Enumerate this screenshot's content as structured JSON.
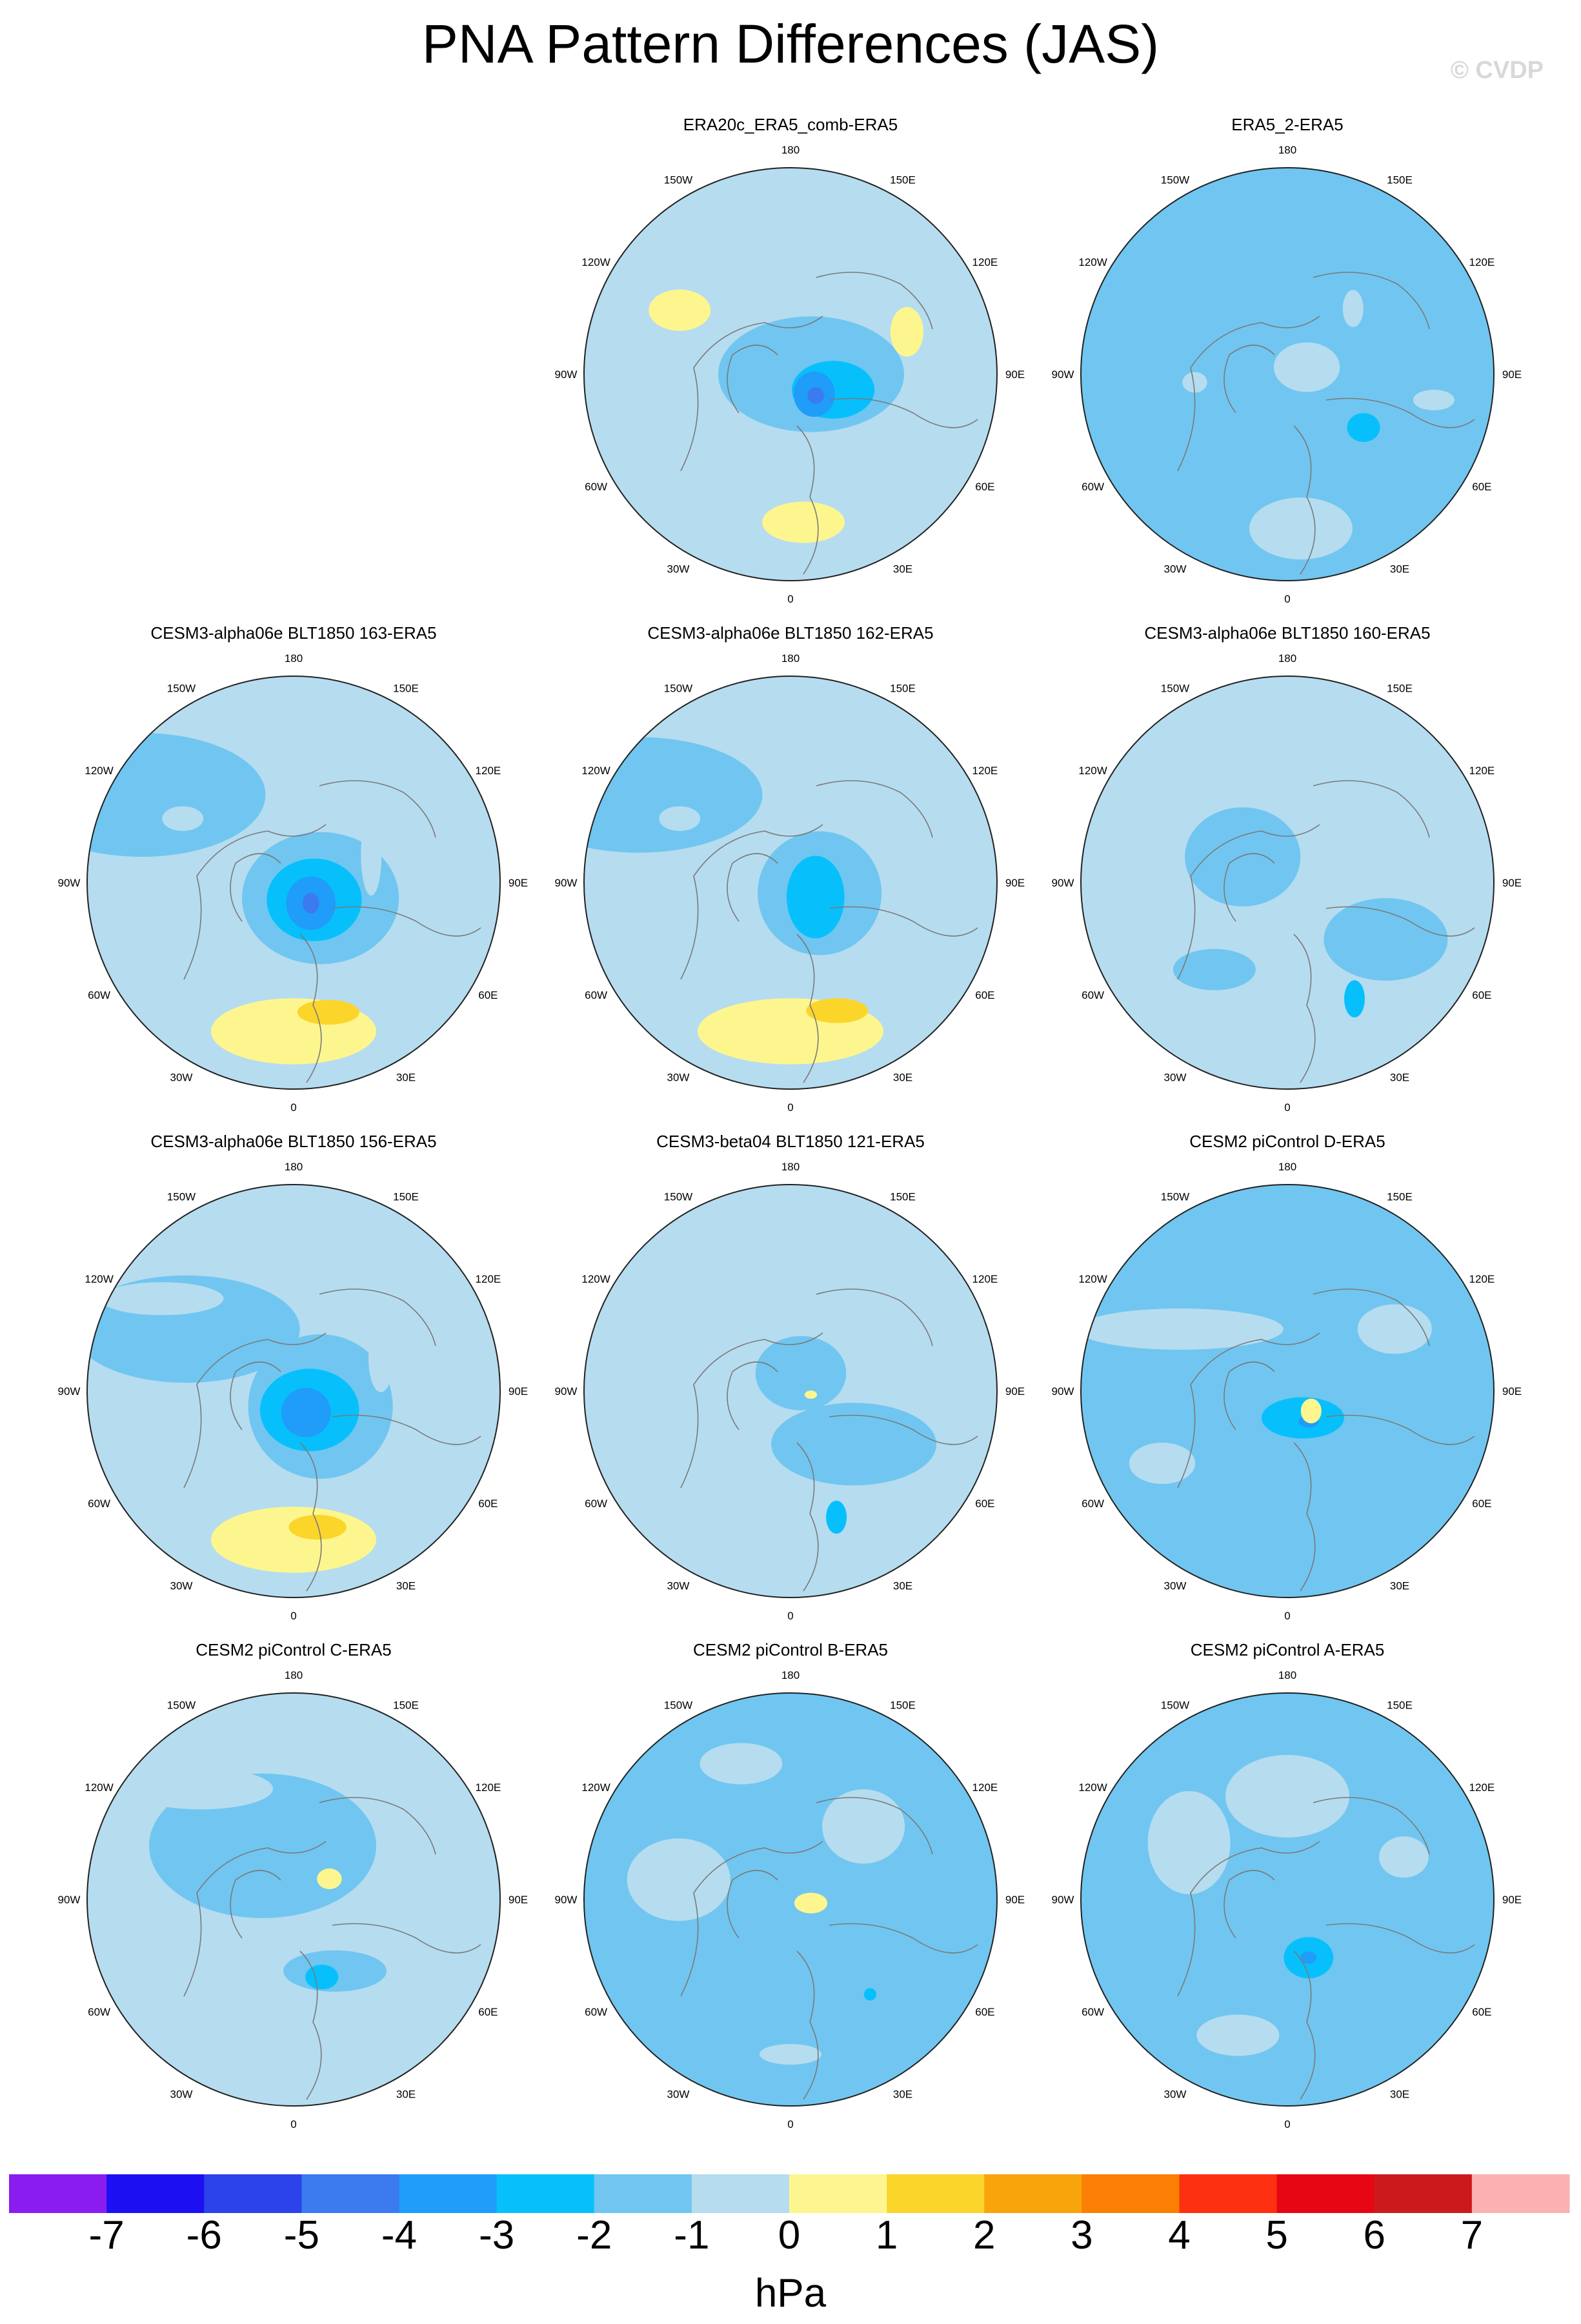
{
  "title": "PNA Pattern Differences (JAS)",
  "credit": "© CVDP",
  "units": "hPa",
  "colorbar": {
    "tick_labels": [
      "-7",
      "-6",
      "-5",
      "-4",
      "-3",
      "-2",
      "-1",
      "0",
      "1",
      "2",
      "3",
      "4",
      "5",
      "6",
      "7"
    ],
    "colors": [
      "#8a1cf0",
      "#1c10f2",
      "#2c42ea",
      "#3c7af0",
      "#1f9df8",
      "#07c0fb",
      "#70c6f0",
      "#b6dcef",
      "#fdf68f",
      "#fbd52a",
      "#faa40b",
      "#fa7f02",
      "#fd3012",
      "#e60614",
      "#cc1a1c",
      "#fbb1b0"
    ]
  },
  "map": {
    "land_color": "#e0e0e0",
    "longitude_labels": [
      "180",
      "150E",
      "120E",
      "90E",
      "60E",
      "30E",
      "0",
      "30W",
      "60W",
      "90W",
      "120W",
      "150W"
    ]
  },
  "panels": [
    {
      "title": "ERA20c_ERA5_comb-ERA5",
      "base_level": 0,
      "features": [
        {
          "lon": 175,
          "r": 0.72,
          "level": 1,
          "rx": 0.2,
          "ry": 0.1
        },
        {
          "lon": 90,
          "r": 0.1,
          "level": -1,
          "rx": 0.45,
          "ry": 0.28
        },
        {
          "lon": 110,
          "r": 0.22,
          "level": -2,
          "rx": 0.2,
          "ry": 0.14
        },
        {
          "lon": 130,
          "r": 0.15,
          "level": -3,
          "rx": 0.1,
          "ry": 0.11
        },
        {
          "lon": 130,
          "r": 0.16,
          "level": -4,
          "rx": 0.04,
          "ry": 0.04
        },
        {
          "lon": 300,
          "r": 0.75,
          "level": 0,
          "rx": 0.18,
          "ry": 0.08
        },
        {
          "lon": 300,
          "r": 0.62,
          "level": 1,
          "rx": 0.15,
          "ry": 0.1
        },
        {
          "lon": 70,
          "r": 0.6,
          "level": 1,
          "rx": 0.08,
          "ry": 0.12
        }
      ]
    },
    {
      "title": "ERA5_2-ERA5",
      "base_level": -1,
      "features": [
        {
          "lon": 175,
          "r": 0.75,
          "level": 0,
          "rx": 0.25,
          "ry": 0.15
        },
        {
          "lon": 125,
          "r": 0.45,
          "level": -2,
          "rx": 0.08,
          "ry": 0.07
        },
        {
          "lon": 70,
          "r": 0.1,
          "level": 0,
          "rx": 0.16,
          "ry": 0.12
        },
        {
          "lon": 45,
          "r": 0.45,
          "level": 0,
          "rx": 0.05,
          "ry": 0.09
        },
        {
          "lon": 100,
          "r": 0.72,
          "level": 0,
          "rx": 0.1,
          "ry": 0.05
        },
        {
          "lon": 265,
          "r": 0.45,
          "level": 0,
          "rx": 0.06,
          "ry": 0.05
        }
      ]
    },
    {
      "title": "CESM3-alpha06e BLT1850 163-ERA5",
      "base_level": 0,
      "features": [
        {
          "lon": 180,
          "r": 0.72,
          "level": 1,
          "rx": 0.4,
          "ry": 0.16
        },
        {
          "lon": 165,
          "r": 0.65,
          "level": 2,
          "rx": 0.15,
          "ry": 0.06
        },
        {
          "lon": 300,
          "r": 0.85,
          "level": -1,
          "rx": 0.6,
          "ry": 0.3
        },
        {
          "lon": 120,
          "r": 0.15,
          "level": -1,
          "rx": 0.38,
          "ry": 0.32
        },
        {
          "lon": 130,
          "r": 0.13,
          "level": -2,
          "rx": 0.23,
          "ry": 0.2
        },
        {
          "lon": 140,
          "r": 0.13,
          "level": -3,
          "rx": 0.12,
          "ry": 0.13
        },
        {
          "lon": 140,
          "r": 0.13,
          "level": -4,
          "rx": 0.04,
          "ry": 0.05
        },
        {
          "lon": 300,
          "r": 0.62,
          "level": 0,
          "rx": 0.1,
          "ry": 0.06
        },
        {
          "lon": 70,
          "r": 0.4,
          "level": 0,
          "rx": 0.05,
          "ry": 0.2
        }
      ]
    },
    {
      "title": "CESM3-alpha06e BLT1850 162-ERA5",
      "base_level": 0,
      "features": [
        {
          "lon": 180,
          "r": 0.72,
          "level": 1,
          "rx": 0.45,
          "ry": 0.16
        },
        {
          "lon": 160,
          "r": 0.66,
          "level": 2,
          "rx": 0.15,
          "ry": 0.06
        },
        {
          "lon": 300,
          "r": 0.85,
          "level": -1,
          "rx": 0.6,
          "ry": 0.28
        },
        {
          "lon": 110,
          "r": 0.15,
          "level": -1,
          "rx": 0.3,
          "ry": 0.3
        },
        {
          "lon": 120,
          "r": 0.14,
          "level": -2,
          "rx": 0.14,
          "ry": 0.2
        },
        {
          "lon": 300,
          "r": 0.62,
          "level": 0,
          "rx": 0.1,
          "ry": 0.06
        },
        {
          "lon": 80,
          "r": 0.55,
          "level": 0,
          "rx": 0.12,
          "ry": 0.1
        }
      ]
    },
    {
      "title": "CESM3-alpha06e BLT1850 160-ERA5",
      "base_level": 0,
      "features": [
        {
          "lon": 120,
          "r": 0.55,
          "level": -1,
          "rx": 0.3,
          "ry": 0.2
        },
        {
          "lon": 150,
          "r": 0.65,
          "level": -2,
          "rx": 0.05,
          "ry": 0.09
        },
        {
          "lon": 300,
          "r": 0.25,
          "level": -1,
          "rx": 0.28,
          "ry": 0.24
        },
        {
          "lon": 40,
          "r": 0.3,
          "level": 0,
          "rx": 0.08,
          "ry": 0.12
        },
        {
          "lon": 220,
          "r": 0.55,
          "level": -1,
          "rx": 0.2,
          "ry": 0.1
        }
      ]
    },
    {
      "title": "CESM3-alpha06e BLT1850 156-ERA5",
      "base_level": 0,
      "features": [
        {
          "lon": 180,
          "r": 0.72,
          "level": 1,
          "rx": 0.4,
          "ry": 0.16
        },
        {
          "lon": 170,
          "r": 0.67,
          "level": 2,
          "rx": 0.14,
          "ry": 0.06
        },
        {
          "lon": 300,
          "r": 0.6,
          "level": -1,
          "rx": 0.55,
          "ry": 0.26
        },
        {
          "lon": 120,
          "r": 0.15,
          "level": -1,
          "rx": 0.35,
          "ry": 0.35
        },
        {
          "lon": 140,
          "r": 0.12,
          "level": -2,
          "rx": 0.24,
          "ry": 0.2
        },
        {
          "lon": 150,
          "r": 0.12,
          "level": -3,
          "rx": 0.12,
          "ry": 0.12
        },
        {
          "lon": 305,
          "r": 0.78,
          "level": 0,
          "rx": 0.3,
          "ry": 0.08
        },
        {
          "lon": 70,
          "r": 0.45,
          "level": 0,
          "rx": 0.06,
          "ry": 0.16
        }
      ]
    },
    {
      "title": "CESM3-beta04 BLT1850 121-ERA5",
      "base_level": 0,
      "features": [
        {
          "lon": 130,
          "r": 0.4,
          "level": -1,
          "rx": 0.4,
          "ry": 0.2
        },
        {
          "lon": 160,
          "r": 0.65,
          "level": -2,
          "rx": 0.05,
          "ry": 0.08
        },
        {
          "lon": 30,
          "r": 0.1,
          "level": -1,
          "rx": 0.22,
          "ry": 0.18
        },
        {
          "lon": 280,
          "r": 0.3,
          "level": 0,
          "rx": 0.08,
          "ry": 0.05
        },
        {
          "lon": 100,
          "r": 0.1,
          "level": 1,
          "rx": 0.03,
          "ry": 0.02
        }
      ]
    },
    {
      "title": "CESM2 piControl D-ERA5",
      "base_level": -1,
      "features": [
        {
          "lon": 150,
          "r": 0.15,
          "level": -2,
          "rx": 0.2,
          "ry": 0.1
        },
        {
          "lon": 145,
          "r": 0.18,
          "level": -3,
          "rx": 0.05,
          "ry": 0.03
        },
        {
          "lon": 130,
          "r": 0.15,
          "level": 1,
          "rx": 0.05,
          "ry": 0.06
        },
        {
          "lon": 300,
          "r": 0.6,
          "level": 0,
          "rx": 0.5,
          "ry": 0.1
        },
        {
          "lon": 60,
          "r": 0.6,
          "level": 0,
          "rx": 0.18,
          "ry": 0.12
        },
        {
          "lon": 240,
          "r": 0.7,
          "level": 0,
          "rx": 0.16,
          "ry": 0.1
        }
      ]
    },
    {
      "title": "CESM2 piControl C-ERA5",
      "base_level": 0,
      "features": [
        {
          "lon": 330,
          "r": 0.3,
          "level": -1,
          "rx": 0.55,
          "ry": 0.35
        },
        {
          "lon": 150,
          "r": 0.4,
          "level": -1,
          "rx": 0.25,
          "ry": 0.1
        },
        {
          "lon": 160,
          "r": 0.4,
          "level": -2,
          "rx": 0.08,
          "ry": 0.06
        },
        {
          "lon": 60,
          "r": 0.2,
          "level": 1,
          "rx": 0.06,
          "ry": 0.05
        },
        {
          "lon": 320,
          "r": 0.7,
          "level": 0,
          "rx": 0.35,
          "ry": 0.1
        }
      ]
    },
    {
      "title": "CESM2 piControl B-ERA5",
      "base_level": -1,
      "features": [
        {
          "lon": 180,
          "r": 0.75,
          "level": 0,
          "rx": 0.15,
          "ry": 0.05
        },
        {
          "lon": 100,
          "r": 0.1,
          "level": 1,
          "rx": 0.08,
          "ry": 0.05
        },
        {
          "lon": 280,
          "r": 0.55,
          "level": 0,
          "rx": 0.25,
          "ry": 0.2
        },
        {
          "lon": 340,
          "r": 0.7,
          "level": 0,
          "rx": 0.2,
          "ry": 0.1
        },
        {
          "lon": 140,
          "r": 0.6,
          "level": -2,
          "rx": 0.03,
          "ry": 0.03
        },
        {
          "lon": 45,
          "r": 0.5,
          "level": 0,
          "rx": 0.2,
          "ry": 0.18
        }
      ]
    },
    {
      "title": "CESM2 piControl A-ERA5",
      "base_level": -1,
      "features": [
        {
          "lon": 160,
          "r": 0.3,
          "level": -2,
          "rx": 0.12,
          "ry": 0.1
        },
        {
          "lon": 160,
          "r": 0.3,
          "level": -3,
          "rx": 0.04,
          "ry": 0.03
        },
        {
          "lon": 0,
          "r": 0.5,
          "level": 0,
          "rx": 0.3,
          "ry": 0.2
        },
        {
          "lon": 300,
          "r": 0.55,
          "level": 0,
          "rx": 0.2,
          "ry": 0.25
        },
        {
          "lon": 70,
          "r": 0.6,
          "level": 0,
          "rx": 0.12,
          "ry": 0.1
        },
        {
          "lon": 200,
          "r": 0.7,
          "level": 0,
          "rx": 0.2,
          "ry": 0.1
        }
      ]
    }
  ]
}
